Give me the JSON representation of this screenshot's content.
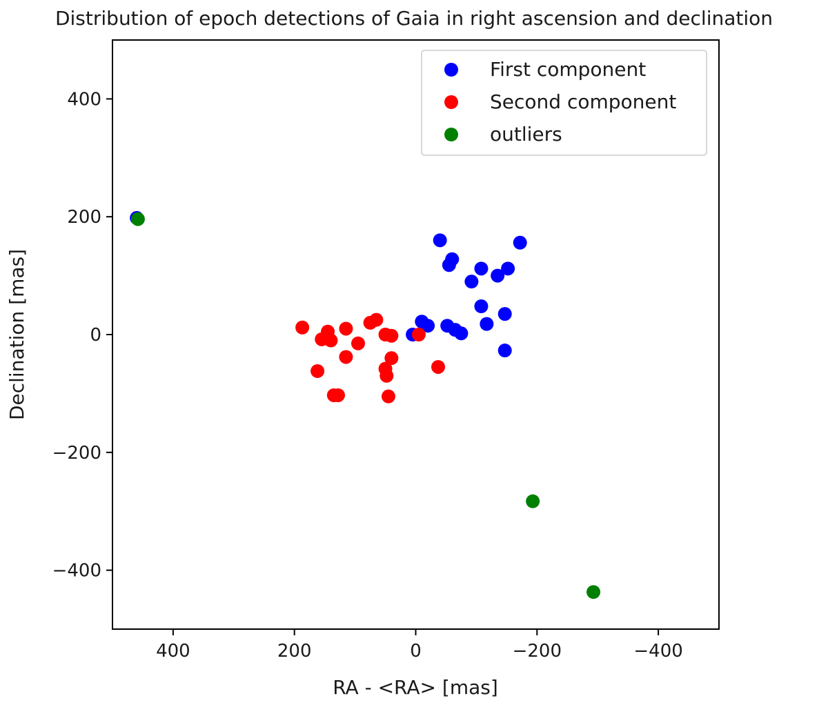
{
  "chart_data": {
    "type": "scatter",
    "title": "Distribution of epoch detections of Gaia in right ascension and declination",
    "xlabel": "RA - <RA> [mas]",
    "ylabel": "Declination [mas]",
    "xlim": [
      500,
      -500
    ],
    "ylim": [
      -500,
      500
    ],
    "x_inverted": true,
    "xticks": [
      400,
      200,
      0,
      -200,
      -400
    ],
    "xtick_labels": [
      "400",
      "200",
      "0",
      "−200",
      "−400"
    ],
    "yticks": [
      400,
      200,
      0,
      -200,
      -400
    ],
    "ytick_labels": [
      "400",
      "200",
      "0",
      "−200",
      "−400"
    ],
    "grid": false,
    "legend_position": "top-right",
    "series": [
      {
        "name": "First component",
        "color": "#0000ff",
        "points": [
          [
            460,
            198
          ],
          [
            -40,
            160
          ],
          [
            -172,
            156
          ],
          [
            -60,
            128
          ],
          [
            -55,
            118
          ],
          [
            -108,
            112
          ],
          [
            -152,
            112
          ],
          [
            -135,
            100
          ],
          [
            -92,
            90
          ],
          [
            -108,
            48
          ],
          [
            -147,
            35
          ],
          [
            -10,
            22
          ],
          [
            -20,
            15
          ],
          [
            -52,
            15
          ],
          [
            -117,
            18
          ],
          [
            -65,
            8
          ],
          [
            -75,
            2
          ],
          [
            5,
            0
          ],
          [
            -147,
            -27
          ]
        ]
      },
      {
        "name": "Second component",
        "color": "#ff0000",
        "points": [
          [
            187,
            12
          ],
          [
            145,
            5
          ],
          [
            115,
            10
          ],
          [
            75,
            20
          ],
          [
            65,
            25
          ],
          [
            155,
            -8
          ],
          [
            140,
            -10
          ],
          [
            95,
            -15
          ],
          [
            50,
            0
          ],
          [
            40,
            -2
          ],
          [
            -5,
            0
          ],
          [
            115,
            -38
          ],
          [
            40,
            -40
          ],
          [
            162,
            -62
          ],
          [
            50,
            -58
          ],
          [
            -37,
            -55
          ],
          [
            48,
            -70
          ],
          [
            135,
            -103
          ],
          [
            128,
            -103
          ],
          [
            45,
            -105
          ]
        ]
      },
      {
        "name": "outliers",
        "color": "#008000",
        "points": [
          [
            458,
            196
          ],
          [
            -193,
            -283
          ],
          [
            -293,
            -437
          ]
        ]
      }
    ]
  }
}
